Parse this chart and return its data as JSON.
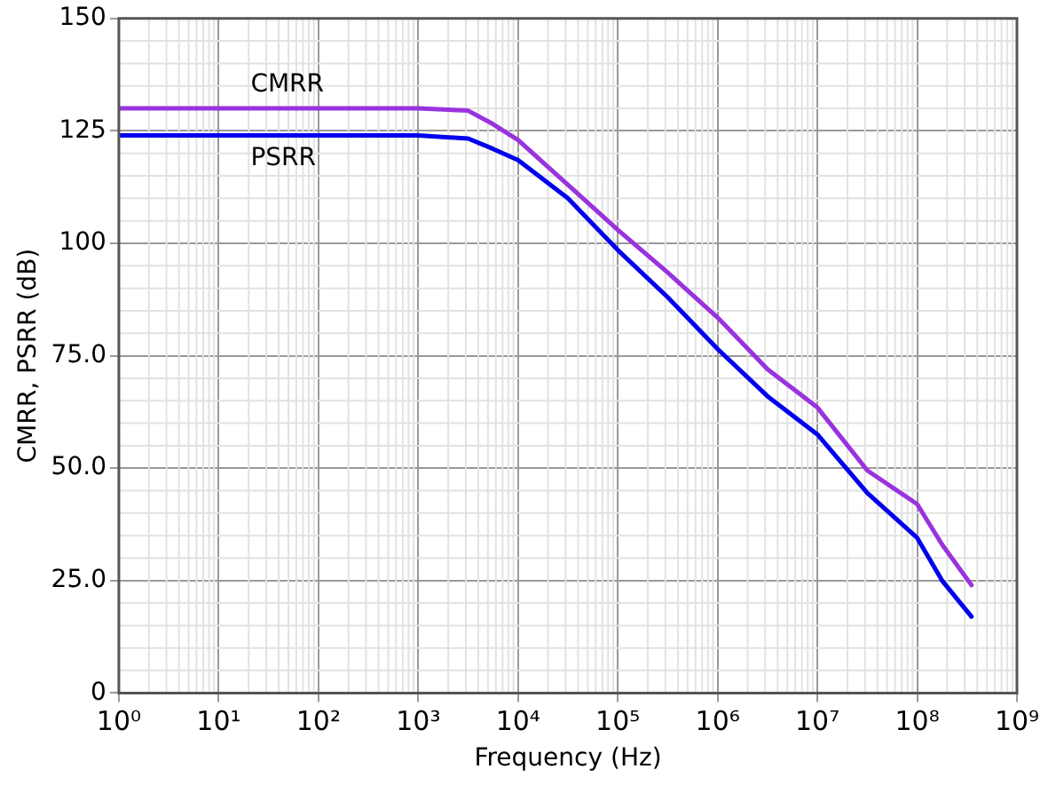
{
  "chart_data": {
    "type": "line",
    "xlabel": "Frequency (Hz)",
    "ylabel": "CMRR, PSRR (dB)",
    "log": "x",
    "xlim": [
      1,
      1000000000
    ],
    "xticks": [
      {
        "value": 1,
        "label": "10⁰"
      },
      {
        "value": 10,
        "label": "10¹"
      },
      {
        "value": 100,
        "label": "10²"
      },
      {
        "value": 1000,
        "label": "10³"
      },
      {
        "value": 10000,
        "label": "10⁴"
      },
      {
        "value": 100000,
        "label": "10⁵"
      },
      {
        "value": 1000000,
        "label": "10⁶"
      },
      {
        "value": 10000000,
        "label": "10⁷"
      },
      {
        "value": 100000000,
        "label": "10⁸"
      },
      {
        "value": 1000000000,
        "label": "10⁹"
      }
    ],
    "ylim": [
      0,
      150
    ],
    "yticks": [
      0,
      {
        "value": 25,
        "label": "25.0"
      },
      {
        "value": 50,
        "label": "50.0"
      },
      {
        "value": 75,
        "label": "75.0"
      },
      100,
      125,
      150
    ],
    "grid": true,
    "legend": false,
    "marker": "none",
    "line_style": "solid",
    "x": [
      1,
      10,
      100,
      1000,
      3162,
      5623,
      10000,
      31623,
      100000,
      316228,
      1000000,
      3162278,
      10000000,
      31622777,
      100000000,
      177827941,
      350000000
    ],
    "series": [
      {
        "name": "CMRR",
        "color": "#9933dd",
        "values": [
          130,
          130,
          130,
          130,
          129.5,
          126.5,
          123,
          113,
          103,
          93.5,
          83.5,
          72,
          63.5,
          49.5,
          42,
          33,
          24
        ]
      },
      {
        "name": "PSRR",
        "color": "#0000ee",
        "values": [
          124,
          124,
          124,
          124,
          123.3,
          121,
          118.5,
          110,
          98.5,
          88,
          76.5,
          66,
          57.5,
          44.5,
          34.5,
          25,
          17
        ]
      }
    ]
  }
}
